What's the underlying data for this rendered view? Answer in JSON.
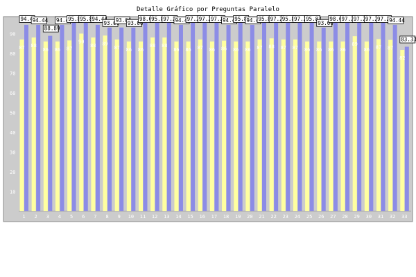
{
  "chart_data": {
    "type": "bar",
    "title": "Detalle Gráfico por Preguntas Paralelo",
    "xlabel": "",
    "ylabel": "",
    "ylim": [
      0,
      100
    ],
    "yticks": [
      10,
      20,
      30,
      40,
      50,
      60,
      70,
      80,
      90
    ],
    "grid": false,
    "legend": "none",
    "categories": [
      "1",
      "2",
      "3",
      "4",
      "5",
      "6",
      "7",
      "8",
      "9",
      "10",
      "11",
      "12",
      "13",
      "14",
      "15",
      "16",
      "17",
      "18",
      "19",
      "20",
      "21",
      "22",
      "23",
      "24",
      "25",
      "26",
      "27",
      "28",
      "29",
      "30",
      "31",
      "32",
      "33"
    ],
    "series": [
      {
        "color": "#8c8ce6",
        "values": [
          94.44,
          94.44,
          88.89,
          94.44,
          95.83,
          95.83,
          94.44,
          93.06,
          93.06,
          93.06,
          98.61,
          95.83,
          97.22,
          94.44,
          97.22,
          97.22,
          97.22,
          94.44,
          95.83,
          94.44,
          95.83,
          97.22,
          95.83,
          97.22,
          95.83,
          93.06,
          98.61,
          97.22,
          97.22,
          97.22,
          97.22,
          94.44,
          83.33
        ]
      },
      {
        "color": "#ffffa0",
        "values": [
          87.0,
          88.0,
          86.0,
          86.0,
          86.53,
          90.0,
          88.0,
          89.0,
          87.0,
          86.0,
          86.0,
          88.0,
          88.0,
          86.0,
          86.0,
          87.0,
          86.0,
          86.42,
          86.0,
          86.0,
          87.0,
          87.6,
          87.0,
          87.0,
          86.0,
          86.0,
          86.0,
          86.0,
          88.71,
          86.0,
          87.23,
          86.8,
          81.74
        ]
      }
    ],
    "data_labels": [
      "94.44",
      "94.44",
      "88.89",
      "94.44",
      "95.83",
      "95.83",
      "94.44",
      "93.06",
      "93.06",
      "93.06",
      "98.61",
      "95.83",
      "97.22",
      "94.44",
      "97.22",
      "97.22",
      "97.22",
      "94.44",
      "95.83",
      "94.44",
      "95.83",
      "97.22",
      "95.83",
      "97.22",
      "95.83",
      "93.06",
      "98.61",
      "97.22",
      "97.22",
      "97.22",
      "97.22",
      "94.44",
      "83.33"
    ]
  },
  "colors": {
    "plot_background": "#cccccc",
    "bar_primary": "#8c8ce6",
    "bar_secondary": "#ffffa0",
    "axis_text": "#ffffff"
  }
}
